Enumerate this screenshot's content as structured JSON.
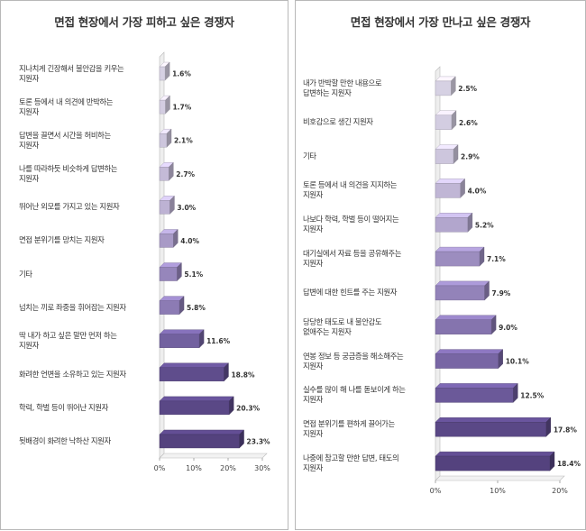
{
  "chart_data": [
    {
      "type": "bar",
      "orientation": "horizontal",
      "title": "면접 현장에서 가장 피하고 싶은 경쟁자",
      "categories": [
        "지나치게 긴장해서 불안감을 키우는\n지원자",
        "토론 등에서 내 의견에 반박하는\n지원자",
        "답변을 끌면서 시간을 허비하는\n지원자",
        "나를 따라하듯 비슷하게 답변하는\n지원자",
        "뛰어난 외모를 가지고 있는 지원자",
        "면접 분위기를 망치는 지원자",
        "기타",
        "넘치는 끼로 좌중을 휘어잡는 지원자",
        "딱 내가 하고 싶은 말만 먼저 하는\n지원자",
        "화려한 언변을 소유하고 있는 지원자",
        "학력, 학벌 등이 뛰어난 지원자",
        "뒷배경이 화려한 낙하산 지원자"
      ],
      "values": [
        1.6,
        1.7,
        2.1,
        2.7,
        3.0,
        4.0,
        5.1,
        5.8,
        11.6,
        18.8,
        20.3,
        23.3
      ],
      "value_labels": [
        "1.6%",
        "1.7%",
        "2.1%",
        "2.7%",
        "3.0%",
        "4.0%",
        "5.1%",
        "5.8%",
        "11.6%",
        "18.8%",
        "20.3%",
        "23.3%"
      ],
      "bar_colors": [
        "#d6d1e3",
        "#d3cde1",
        "#cdc6dd",
        "#c4bad7",
        "#bdb2d3",
        "#a89ac6",
        "#9686bb",
        "#8c7bb4",
        "#72619f",
        "#5f4d8c",
        "#5a4886",
        "#54427e"
      ],
      "xlim": [
        0,
        30
      ],
      "xticks": [
        "0%",
        "10%",
        "20%",
        "30%"
      ],
      "xtick_values": [
        0,
        10,
        20,
        30
      ]
    },
    {
      "type": "bar",
      "orientation": "horizontal",
      "title": "면접 현장에서 가장 만나고 싶은 경쟁자",
      "categories": [
        "내가 반박할 만한 내용으로\n답변하는 지원자",
        "비호감으로 생긴 지원자",
        "기타",
        "토론 등에서 내 의견을 지지하는\n지원자",
        "나보다 학력, 학벌 등이 떨어지는\n지원자",
        "대기실에서 자료 등을 공유해주는\n지원자",
        "답변에 대한 힌트를 주는 지원자",
        "당당한 태도로 내 불안감도\n없애주는 지원자",
        "연봉 정보 등 궁금증을 해소해주는\n지원자",
        "실수를 많이 해 나를 돋보이게 하는\n지원자",
        "면접 분위기를 편하게 끌어가는\n지원자",
        "나중에 참고할 만한 답변, 태도의\n지원자"
      ],
      "values": [
        2.5,
        2.6,
        2.9,
        4.0,
        5.2,
        7.1,
        7.9,
        9.0,
        10.1,
        12.5,
        17.8,
        18.4
      ],
      "value_labels": [
        "2.5%",
        "2.6%",
        "2.9%",
        "4.0%",
        "5.2%",
        "7.1%",
        "7.9%",
        "9.0%",
        "10.1%",
        "12.5%",
        "17.8%",
        "18.4%"
      ],
      "bar_colors": [
        "#d6d1e3",
        "#d3cde1",
        "#cdc6dd",
        "#c0b6d5",
        "#b2a6cd",
        "#9c8dbf",
        "#9383b9",
        "#8574ae",
        "#7866a4",
        "#6b5999",
        "#5a4886",
        "#54427e"
      ],
      "xlim": [
        0,
        20
      ],
      "xticks": [
        "0%",
        "10%",
        "20%"
      ],
      "xtick_values": [
        0,
        10,
        20
      ]
    }
  ]
}
